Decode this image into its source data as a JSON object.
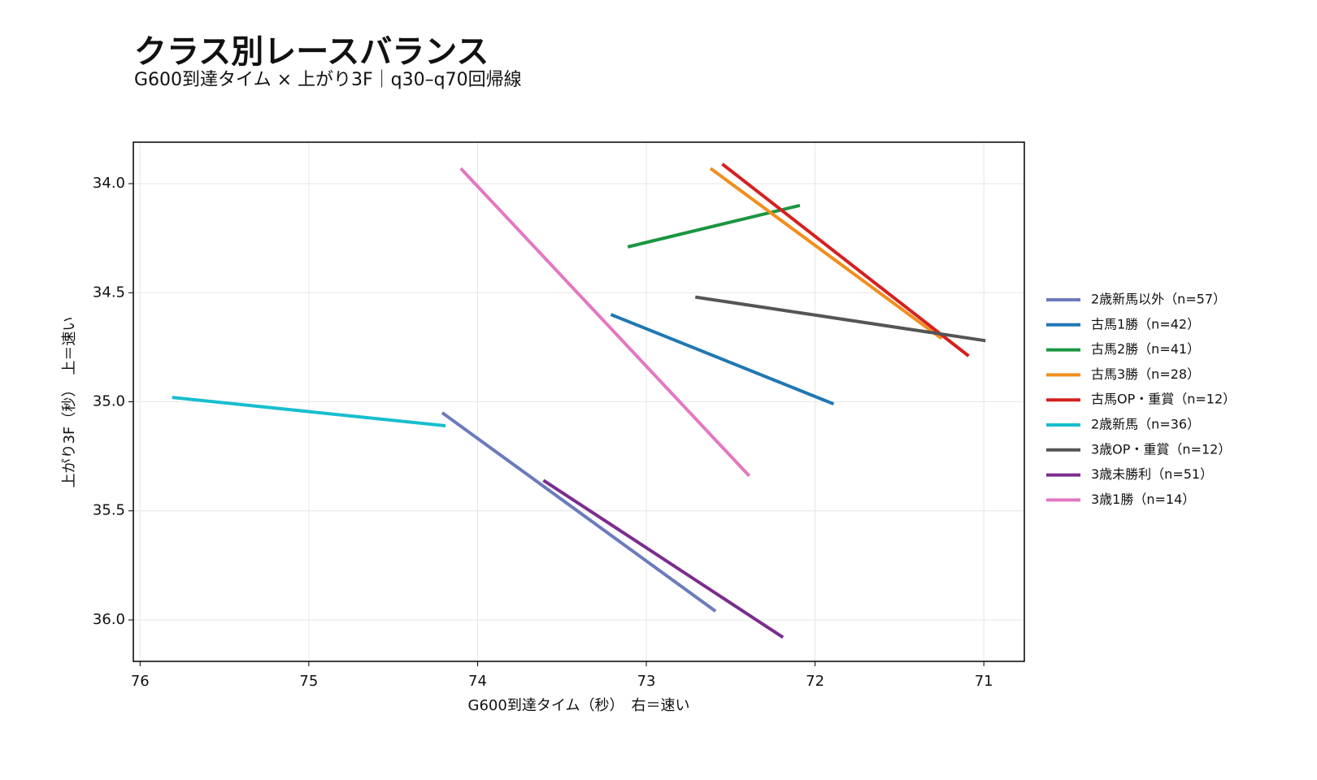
{
  "chart_data": {
    "type": "line",
    "title": "クラス別レースバランス",
    "subtitle": "G600到達タイム × 上がり3F｜q30–q70回帰線",
    "x_label": "G600到達タイム（秒）　右＝速い",
    "y_label": "上がり3F（秒）　上＝速い",
    "xlim": [
      76.04,
      70.76
    ],
    "ylim": [
      36.19,
      33.81
    ],
    "xticks": [
      76,
      75,
      74,
      73,
      72,
      71
    ],
    "yticks": [
      {
        "value": 34,
        "label": "34.0"
      },
      34.5,
      {
        "value": 35,
        "label": "35.0"
      },
      35.5,
      {
        "value": 36,
        "label": "36.0"
      }
    ],
    "grid": true,
    "legend": "right",
    "series": [
      {
        "name": "2歳新馬以外（n=57）",
        "color": "#6b7bbd",
        "x": [
          74.21,
          72.59
        ],
        "values": [
          35.05,
          35.96
        ]
      },
      {
        "name": "古馬1勝（n=42）",
        "color": "#1f77b4",
        "x": [
          73.21,
          71.89
        ],
        "values": [
          34.6,
          35.01
        ]
      },
      {
        "name": "古馬2勝（n=41）",
        "color": "#1a9641",
        "x": [
          73.11,
          72.09
        ],
        "values": [
          34.29,
          34.1
        ]
      },
      {
        "name": "古馬3勝（n=28）",
        "color": "#f28e1c",
        "x": [
          72.62,
          71.25
        ],
        "values": [
          33.93,
          34.71
        ]
      },
      {
        "name": "古馬OP・重賞（n=12）",
        "color": "#d62020",
        "x": [
          72.55,
          71.09
        ],
        "values": [
          33.91,
          34.79
        ]
      },
      {
        "name": "2歳新馬（n=36）",
        "color": "#17becf",
        "x": [
          75.81,
          74.19
        ],
        "values": [
          34.98,
          35.11
        ]
      },
      {
        "name": "3歳OP・重賞（n=12）",
        "color": "#555555",
        "x": [
          72.71,
          70.99
        ],
        "values": [
          34.52,
          34.72
        ]
      },
      {
        "name": "3歳未勝利（n=51）",
        "color": "#7b2d8e",
        "x": [
          73.61,
          72.19
        ],
        "values": [
          35.36,
          36.08
        ]
      },
      {
        "name": "3歳1勝（n=14）",
        "color": "#e377c2",
        "x": [
          74.1,
          72.39
        ],
        "values": [
          33.93,
          35.34
        ]
      }
    ]
  }
}
